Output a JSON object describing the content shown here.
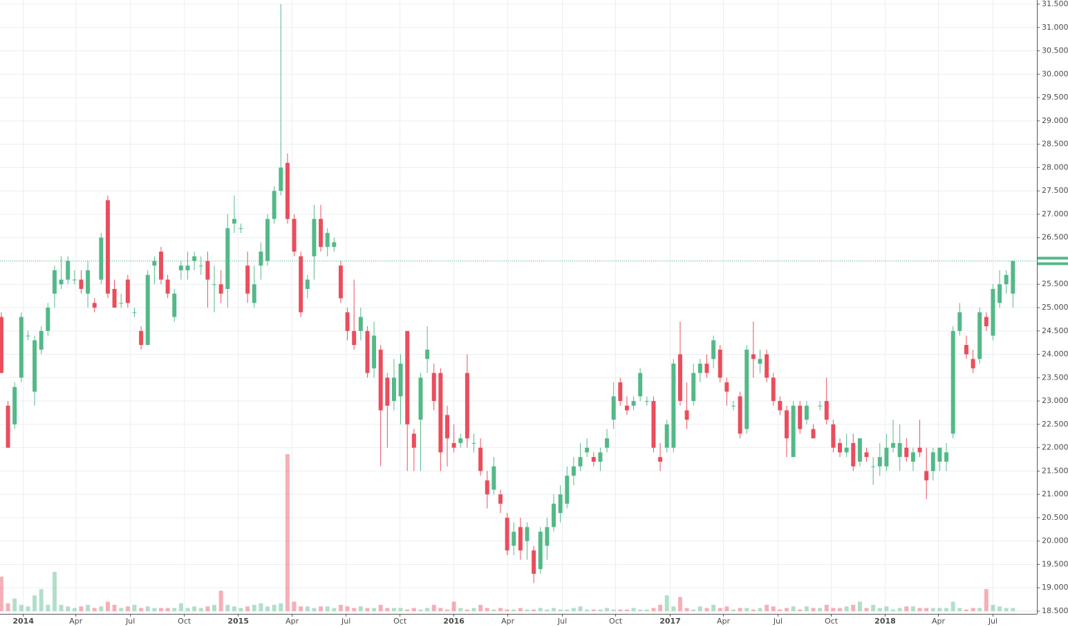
{
  "chart_data": {
    "type": "candlestick",
    "up_color": "#53b987",
    "down_color": "#eb4d5c",
    "grid": true,
    "ylim": [
      18.5,
      31.5
    ],
    "yticks": [
      {
        "value": 18.5,
        "label": "18.500"
      },
      {
        "value": 19,
        "label": "19.000"
      },
      {
        "value": 19.5,
        "label": "19.500"
      },
      {
        "value": 20,
        "label": "20.000"
      },
      {
        "value": 20.5,
        "label": "20.500"
      },
      {
        "value": 21,
        "label": "21.000"
      },
      {
        "value": 21.5,
        "label": "21.500"
      },
      {
        "value": 22,
        "label": "22.000"
      },
      {
        "value": 22.5,
        "label": "22.500"
      },
      {
        "value": 23,
        "label": "23.000"
      },
      {
        "value": 23.5,
        "label": "23.500"
      },
      {
        "value": 24,
        "label": "24.000"
      },
      {
        "value": 24.5,
        "label": "24.500"
      },
      {
        "value": 25,
        "label": "25.000"
      },
      {
        "value": 25.5,
        "label": "25.500"
      },
      {
        "value": 26,
        "label": "26.000"
      },
      {
        "value": 26.5,
        "label": "26.500"
      },
      {
        "value": 27,
        "label": "27.000"
      },
      {
        "value": 27.5,
        "label": "27.500"
      },
      {
        "value": 28,
        "label": "28.000"
      },
      {
        "value": 28.5,
        "label": "28.500"
      },
      {
        "value": 29,
        "label": "29.000"
      },
      {
        "value": 29.5,
        "label": "29.500"
      },
      {
        "value": 30,
        "label": "30.000"
      },
      {
        "value": 30.5,
        "label": "30.500"
      },
      {
        "value": 31,
        "label": "31.000"
      },
      {
        "value": 31.5,
        "label": "31.500"
      }
    ],
    "xlim": [
      -0.2,
      155.6
    ],
    "xticks": [
      {
        "value": 3.3,
        "label": "2014",
        "bold": true
      },
      {
        "value": 11.2,
        "label": "Apr"
      },
      {
        "value": 19.4,
        "label": "Jul"
      },
      {
        "value": 27.5,
        "label": "Oct"
      },
      {
        "value": 35.6,
        "label": "2015",
        "bold": true
      },
      {
        "value": 43.7,
        "label": "Apr"
      },
      {
        "value": 51.8,
        "label": "Jul"
      },
      {
        "value": 59.9,
        "label": "Oct"
      },
      {
        "value": 68.0,
        "label": "2016",
        "bold": true
      },
      {
        "value": 76.1,
        "label": "Apr"
      },
      {
        "value": 84.3,
        "label": "Jul"
      },
      {
        "value": 92.3,
        "label": "Oct"
      },
      {
        "value": 100.5,
        "label": "2017",
        "bold": true
      },
      {
        "value": 108.5,
        "label": "Apr"
      },
      {
        "value": 116.7,
        "label": "Jul"
      },
      {
        "value": 124.7,
        "label": "Oct"
      },
      {
        "value": 132.8,
        "label": "2018",
        "bold": true
      },
      {
        "value": 140.8,
        "label": "Apr"
      },
      {
        "value": 149.0,
        "label": "Jul"
      }
    ],
    "volume_ylim": [
      0,
      100
    ],
    "candles": [
      [
        24.8,
        24.9,
        23.6,
        23.6
      ],
      [
        22.9,
        23.0,
        22.0,
        22.0
      ],
      [
        22.5,
        23.4,
        22.4,
        23.3
      ],
      [
        23.5,
        24.9,
        23.4,
        24.8
      ],
      [
        24.4,
        24.5,
        24.3,
        24.4
      ],
      [
        23.2,
        24.4,
        22.9,
        24.3
      ],
      [
        24.1,
        24.6,
        24.0,
        24.5
      ],
      [
        24.5,
        25.1,
        24.4,
        25.0
      ],
      [
        25.3,
        25.9,
        25.0,
        25.8
      ],
      [
        25.5,
        26.1,
        25.4,
        25.6
      ],
      [
        25.6,
        26.1,
        25.5,
        26.0
      ],
      [
        25.6,
        25.8,
        25.5,
        25.6
      ],
      [
        25.6,
        25.8,
        25.3,
        25.4
      ],
      [
        25.3,
        26.0,
        25.0,
        25.8
      ],
      [
        25.1,
        25.2,
        24.9,
        25.0
      ],
      [
        25.6,
        26.6,
        25.5,
        26.5
      ],
      [
        27.3,
        27.4,
        25.2,
        25.3
      ],
      [
        25.4,
        25.6,
        25.0,
        25.0
      ],
      [
        25.1,
        25.3,
        25.0,
        25.1
      ],
      [
        25.6,
        25.7,
        25.0,
        25.1
      ],
      [
        24.9,
        25.0,
        24.8,
        24.9
      ],
      [
        24.5,
        24.6,
        24.1,
        24.2
      ],
      [
        24.2,
        25.8,
        24.2,
        25.7
      ],
      [
        25.9,
        26.1,
        25.5,
        26.0
      ],
      [
        26.2,
        26.3,
        25.5,
        25.6
      ],
      [
        25.6,
        25.7,
        25.2,
        25.3
      ],
      [
        24.8,
        25.4,
        24.7,
        25.3
      ],
      [
        25.8,
        26.0,
        25.6,
        25.9
      ],
      [
        25.8,
        26.2,
        25.6,
        25.9
      ],
      [
        26.0,
        26.2,
        25.8,
        26.1
      ],
      [
        25.9,
        26.1,
        25.7,
        25.9
      ],
      [
        26.0,
        26.2,
        25.0,
        25.6
      ],
      [
        25.5,
        25.9,
        24.9,
        25.5
      ],
      [
        25.5,
        25.8,
        25.1,
        25.3
      ],
      [
        25.4,
        27.0,
        25.0,
        26.7
      ],
      [
        26.8,
        27.4,
        26.6,
        26.9
      ],
      [
        26.7,
        26.8,
        26.6,
        26.7
      ],
      [
        25.9,
        26.2,
        25.1,
        25.3
      ],
      [
        25.1,
        25.9,
        25.0,
        25.5
      ],
      [
        25.9,
        26.4,
        25.6,
        26.2
      ],
      [
        26.0,
        27.0,
        25.9,
        26.9
      ],
      [
        26.9,
        27.6,
        26.8,
        27.5
      ],
      [
        27.5,
        31.5,
        27.4,
        28.0
      ],
      [
        28.1,
        28.3,
        26.8,
        26.9
      ],
      [
        26.9,
        27.0,
        26.1,
        26.2
      ],
      [
        26.1,
        26.2,
        24.8,
        24.9
      ],
      [
        25.4,
        25.7,
        25.2,
        25.6
      ],
      [
        26.1,
        27.2,
        25.6,
        26.9
      ],
      [
        26.9,
        27.2,
        26.2,
        26.3
      ],
      [
        26.3,
        26.7,
        26.1,
        26.6
      ],
      [
        26.3,
        26.5,
        26.2,
        26.4
      ],
      [
        25.9,
        26.0,
        25.1,
        25.2
      ],
      [
        24.9,
        25.0,
        24.3,
        24.5
      ],
      [
        24.5,
        25.6,
        24.1,
        24.2
      ],
      [
        24.5,
        25.0,
        24.3,
        24.8
      ],
      [
        24.5,
        24.6,
        23.5,
        23.6
      ],
      [
        23.7,
        24.7,
        23.5,
        24.4
      ],
      [
        24.1,
        24.2,
        21.6,
        22.8
      ],
      [
        23.5,
        23.6,
        22.0,
        22.9
      ],
      [
        23.0,
        23.9,
        22.8,
        23.5
      ],
      [
        23.1,
        24.0,
        22.5,
        23.8
      ],
      [
        24.5,
        24.5,
        21.5,
        22.5
      ],
      [
        22.3,
        22.4,
        21.5,
        22.0
      ],
      [
        22.6,
        23.6,
        21.5,
        23.5
      ],
      [
        23.9,
        24.6,
        23.6,
        24.1
      ],
      [
        23.6,
        23.8,
        22.8,
        23.0
      ],
      [
        23.6,
        23.7,
        21.5,
        21.9
      ],
      [
        22.7,
        22.9,
        21.6,
        22.2
      ],
      [
        22.1,
        22.5,
        21.9,
        22.0
      ],
      [
        22.1,
        22.3,
        22.0,
        22.2
      ],
      [
        23.6,
        24.0,
        22.0,
        22.2
      ],
      [
        22.1,
        22.3,
        21.9,
        22.1
      ],
      [
        22.0,
        22.2,
        21.4,
        21.5
      ],
      [
        21.3,
        21.5,
        20.7,
        21.0
      ],
      [
        21.1,
        21.8,
        21.0,
        21.6
      ],
      [
        21.0,
        21.1,
        20.6,
        20.8
      ],
      [
        20.5,
        20.6,
        19.7,
        19.8
      ],
      [
        19.9,
        20.4,
        19.7,
        20.2
      ],
      [
        20.3,
        20.5,
        19.6,
        19.8
      ],
      [
        20.0,
        20.4,
        19.6,
        20.3
      ],
      [
        19.8,
        19.9,
        19.1,
        19.3
      ],
      [
        19.4,
        20.3,
        19.3,
        20.2
      ],
      [
        19.9,
        20.5,
        19.6,
        20.3
      ],
      [
        20.3,
        21.0,
        20.2,
        20.8
      ],
      [
        20.6,
        21.2,
        20.4,
        21.0
      ],
      [
        20.8,
        21.6,
        20.7,
        21.4
      ],
      [
        21.4,
        21.8,
        21.2,
        21.6
      ],
      [
        21.6,
        22.1,
        21.5,
        21.8
      ],
      [
        21.9,
        22.2,
        21.8,
        22.0
      ],
      [
        21.8,
        21.9,
        21.6,
        21.7
      ],
      [
        21.7,
        22.0,
        21.5,
        21.9
      ],
      [
        22.0,
        22.4,
        21.9,
        22.2
      ],
      [
        22.6,
        23.4,
        22.4,
        23.1
      ],
      [
        23.4,
        23.5,
        22.9,
        23.0
      ],
      [
        22.9,
        23.1,
        22.7,
        22.8
      ],
      [
        22.9,
        23.1,
        22.8,
        23.0
      ],
      [
        23.1,
        23.7,
        23.0,
        23.6
      ],
      [
        23.0,
        23.1,
        22.9,
        23.0
      ],
      [
        23.0,
        23.1,
        21.9,
        22.0
      ],
      [
        21.8,
        22.1,
        21.5,
        21.7
      ],
      [
        22.0,
        22.6,
        21.9,
        22.5
      ],
      [
        22.0,
        23.9,
        21.9,
        23.8
      ],
      [
        24.0,
        24.7,
        22.9,
        23.0
      ],
      [
        22.8,
        23.4,
        22.4,
        22.6
      ],
      [
        23.0,
        23.8,
        22.9,
        23.6
      ],
      [
        23.6,
        23.9,
        23.4,
        23.8
      ],
      [
        23.8,
        24.0,
        23.5,
        23.6
      ],
      [
        23.9,
        24.4,
        23.7,
        24.3
      ],
      [
        24.1,
        24.2,
        23.4,
        23.5
      ],
      [
        23.4,
        23.5,
        22.9,
        23.2
      ],
      [
        22.9,
        23.0,
        22.8,
        22.9
      ],
      [
        23.1,
        23.2,
        22.2,
        22.3
      ],
      [
        22.4,
        24.2,
        22.3,
        24.1
      ],
      [
        24.0,
        24.7,
        23.5,
        23.9
      ],
      [
        23.8,
        24.1,
        23.6,
        23.9
      ],
      [
        24.0,
        24.1,
        23.4,
        23.5
      ],
      [
        23.5,
        23.6,
        22.9,
        23.0
      ],
      [
        23.0,
        23.1,
        22.7,
        22.8
      ],
      [
        22.8,
        22.9,
        21.8,
        22.2
      ],
      [
        21.8,
        23.0,
        21.8,
        22.9
      ],
      [
        22.9,
        23.0,
        22.3,
        22.4
      ],
      [
        22.6,
        23.0,
        22.5,
        22.9
      ],
      [
        22.4,
        22.5,
        22.2,
        22.2
      ],
      [
        22.9,
        23.0,
        22.8,
        22.9
      ],
      [
        23.0,
        23.5,
        22.5,
        22.6
      ],
      [
        22.5,
        22.6,
        21.9,
        22.0
      ],
      [
        22.1,
        22.2,
        21.8,
        21.9
      ],
      [
        21.9,
        22.3,
        21.8,
        22.0
      ],
      [
        22.1,
        22.3,
        21.5,
        21.6
      ],
      [
        21.7,
        22.2,
        21.6,
        22.2
      ],
      [
        21.9,
        22.0,
        21.7,
        21.8
      ],
      [
        21.6,
        21.8,
        21.2,
        21.6
      ],
      [
        21.6,
        22.1,
        21.4,
        21.8
      ],
      [
        21.6,
        22.3,
        21.5,
        22.0
      ],
      [
        22.0,
        22.6,
        21.9,
        22.1
      ],
      [
        21.8,
        22.5,
        21.5,
        22.1
      ],
      [
        22.0,
        22.2,
        21.7,
        21.8
      ],
      [
        21.7,
        22.0,
        21.5,
        21.9
      ],
      [
        22.0,
        22.6,
        21.8,
        21.9
      ],
      [
        21.5,
        22.0,
        20.9,
        21.3
      ],
      [
        21.5,
        22.0,
        21.3,
        21.9
      ],
      [
        21.7,
        22.0,
        21.5,
        22.0
      ],
      [
        21.7,
        22.1,
        21.5,
        21.9
      ],
      [
        22.3,
        24.6,
        22.2,
        24.5
      ],
      [
        24.5,
        25.1,
        24.4,
        24.9
      ],
      [
        24.2,
        24.4,
        23.9,
        24.0
      ],
      [
        23.9,
        24.1,
        23.6,
        23.7
      ],
      [
        23.9,
        25.0,
        23.8,
        24.9
      ],
      [
        24.8,
        24.9,
        24.5,
        24.6
      ],
      [
        24.4,
        25.5,
        24.3,
        25.4
      ],
      [
        25.1,
        25.8,
        25.0,
        25.5
      ],
      [
        25.5,
        25.8,
        25.3,
        25.7
      ],
      [
        25.3,
        26.0,
        25.0,
        26.0
      ]
    ],
    "volume": [
      22,
      5,
      8,
      4,
      3,
      10,
      14,
      4,
      25,
      4,
      3,
      2,
      3,
      4,
      2,
      3,
      6,
      4,
      2,
      3,
      4,
      2,
      3,
      2,
      2,
      2,
      2,
      5,
      2,
      3,
      2,
      3,
      4,
      13,
      4,
      3,
      2,
      3,
      4,
      5,
      3,
      4,
      5,
      100,
      6,
      3,
      3,
      2,
      3,
      3,
      2,
      4,
      3,
      2,
      3,
      2,
      2,
      4,
      2,
      2,
      2,
      1,
      2,
      1,
      2,
      4,
      2,
      1,
      6,
      2,
      1,
      2,
      4,
      2,
      1,
      2,
      1,
      1,
      2,
      1,
      1,
      2,
      1,
      2,
      1,
      1,
      2,
      3,
      1,
      1,
      1,
      2,
      1,
      1,
      1,
      2,
      1,
      1,
      2,
      4,
      10,
      3,
      9,
      2,
      1,
      3,
      2,
      4,
      2,
      3,
      1,
      2,
      2,
      1,
      2,
      4,
      3,
      1,
      2,
      3,
      1,
      3,
      2,
      2,
      4,
      2,
      2,
      3,
      4,
      6,
      2,
      4,
      2,
      3,
      1,
      2,
      3,
      3,
      2,
      2,
      2,
      2,
      2,
      6,
      2,
      1,
      2,
      2,
      14,
      4,
      3,
      2,
      2
    ]
  }
}
